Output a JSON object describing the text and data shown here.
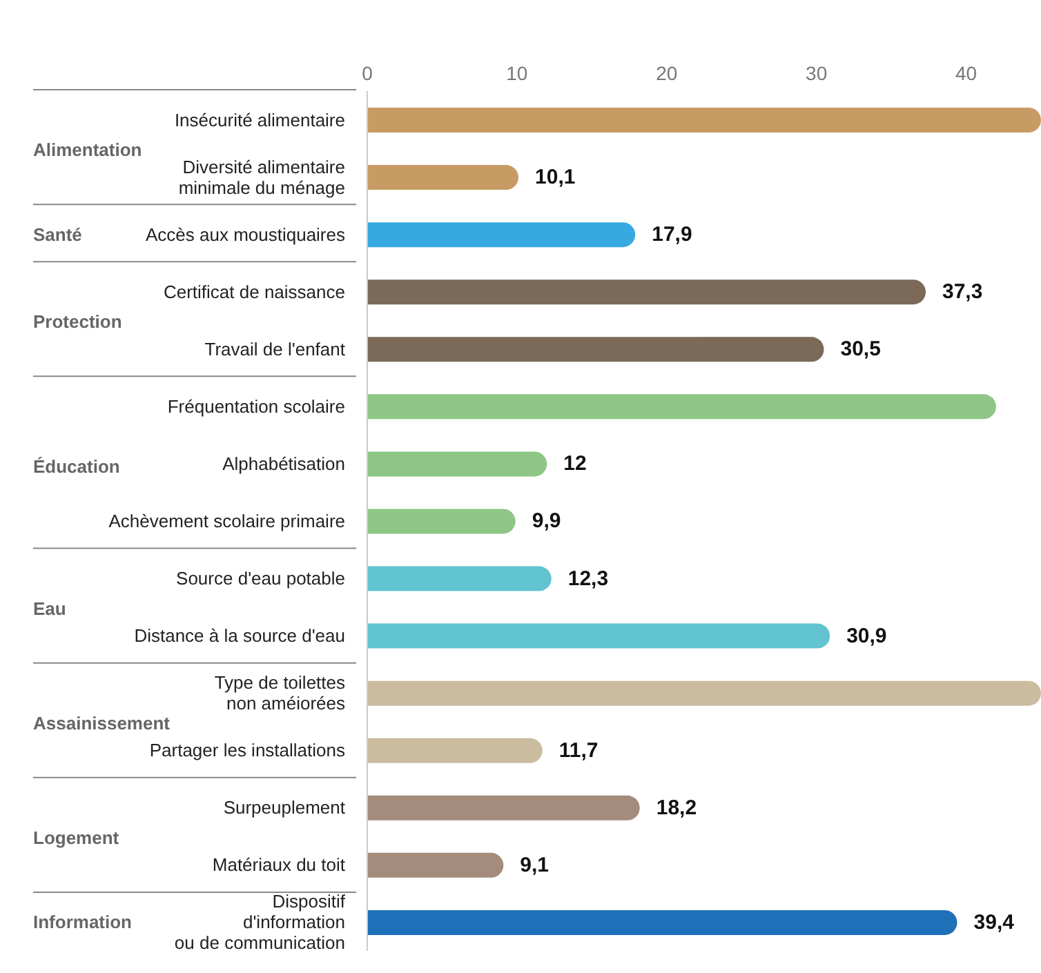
{
  "chart_data": {
    "type": "bar",
    "orientation": "horizontal",
    "categories": [
      "Insécurité alimentaire",
      "Diversité alimentaire\nminimale du ménage",
      "Accès aux moustiquaires",
      "Certificat de naissance",
      "Travail de l'enfant",
      "Fréquentation scolaire",
      "Alphabétisation",
      "Achèvement scolaire primaire",
      "Source d'eau potable",
      "Distance à la source d'eau",
      "Type de toilettes\nnon améiorées",
      "Partager les installations",
      "Surpeuplement",
      "Matériaux du toit",
      "Dispositif\nd'information\nou de communication"
    ],
    "values": [
      45,
      10.1,
      17.9,
      37.3,
      30.5,
      42,
      12,
      9.9,
      12.3,
      30.9,
      45,
      11.7,
      18.2,
      9.1,
      39.4
    ],
    "value_labels": [
      null,
      "10,1",
      "17,9",
      "37,3",
      "30,5",
      null,
      "12",
      "9,9",
      "12,3",
      "30,9",
      null,
      "11,7",
      "18,2",
      "9,1",
      "39,4"
    ],
    "colors": [
      "#c89b65",
      "#c89b65",
      "#36a9e0",
      "#7b6a58",
      "#7b6a58",
      "#8ec686",
      "#8ec686",
      "#8ec686",
      "#62c3d1",
      "#62c3d1",
      "#cbbb9f",
      "#cbbb9f",
      "#a58b7b",
      "#a58b7b",
      "#1f70b8"
    ],
    "annotations": [
      "Alimentation",
      "Santé",
      "Protection",
      "Éducation",
      "Eau",
      "Assainissement",
      "Logement",
      "Information"
    ],
    "xlim": [
      0,
      45
    ],
    "xticks": [
      0,
      10,
      20,
      30,
      40
    ]
  }
}
